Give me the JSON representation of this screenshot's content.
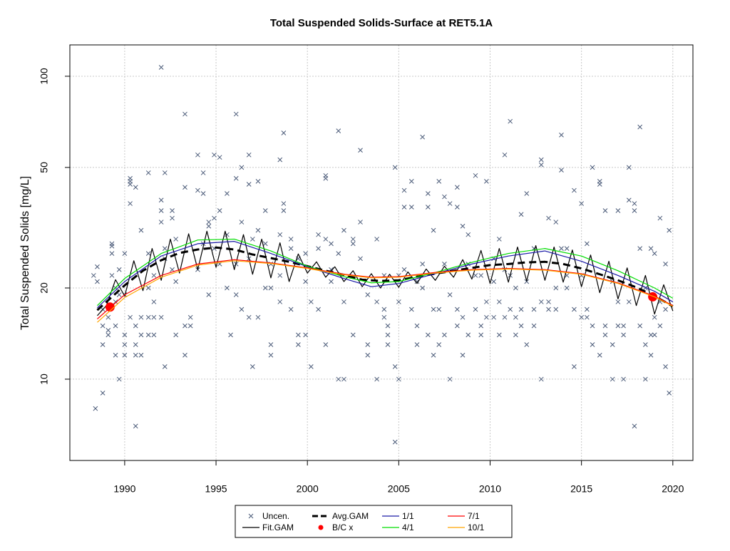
{
  "chart_data": {
    "type": "line",
    "title": "Total Suspended Solids-Surface at RET5.1A",
    "y_label": "Total Suspended Solids [mg/L]",
    "xlim": [
      1987,
      2021.1
    ],
    "ylim": [
      5.39,
      126.9
    ],
    "xticks": [
      1990,
      1995,
      2000,
      2005,
      2010,
      2015,
      2020
    ],
    "yticks": [
      10,
      20,
      50,
      100
    ],
    "ylog": true,
    "grid": true,
    "legend": "bottom",
    "series": [
      {
        "name": "Uncen.",
        "style": "points",
        "color": "#4a5a78",
        "x": [
          1988.3,
          1988.4,
          1988.5,
          1988.5,
          1988.8,
          1988.8,
          1988.8,
          1988.8,
          1989.1,
          1989.1,
          1989.1,
          1989.3,
          1989.3,
          1989.3,
          1989.3,
          1989.5,
          1989.5,
          1989.5,
          1989.5,
          1989.7,
          1989.7,
          1989.7,
          1990.0,
          1990.0,
          1990.0,
          1990.0,
          1990.0,
          1990.3,
          1990.3,
          1990.3,
          1990.3,
          1990.3,
          1990.6,
          1990.6,
          1990.6,
          1990.6,
          1990.6,
          1990.9,
          1990.9,
          1990.9,
          1990.9,
          1991.3,
          1991.3,
          1991.3,
          1991.3,
          1991.3,
          1991.6,
          1991.6,
          1991.6,
          1991.6,
          1992.0,
          1992.0,
          1992.0,
          1992.0,
          1992.0,
          1992.2,
          1992.2,
          1992.2,
          1992.2,
          1992.6,
          1992.6,
          1992.6,
          1992.8,
          1992.8,
          1992.8,
          1993.3,
          1993.3,
          1993.3,
          1993.3,
          1993.6,
          1993.6,
          1994.0,
          1994.0,
          1994.0,
          1994.3,
          1994.3,
          1994.3,
          1994.6,
          1994.6,
          1994.6,
          1994.9,
          1994.9,
          1994.9,
          1995.2,
          1995.2,
          1995.2,
          1995.6,
          1995.6,
          1995.6,
          1995.8,
          1996.1,
          1996.1,
          1996.1,
          1996.1,
          1996.4,
          1996.4,
          1996.4,
          1996.8,
          1996.8,
          1996.8,
          1996.8,
          1997.0,
          1997.0,
          1997.3,
          1997.3,
          1997.3,
          1997.7,
          1997.7,
          1997.7,
          1998.0,
          1998.0,
          1998.0,
          1998.0,
          1998.5,
          1998.5,
          1998.5,
          1998.5,
          1998.7,
          1998.7,
          1998.7,
          1999.1,
          1999.1,
          1999.1,
          1999.5,
          1999.5,
          1999.5,
          1999.9,
          1999.9,
          1999.9,
          2000.2,
          2000.2,
          2000.6,
          2000.6,
          2000.6,
          2001.0,
          2001.0,
          2001.0,
          2001.0,
          2001.3,
          2001.3,
          2001.3,
          2001.7,
          2001.7,
          2001.7,
          2002.0,
          2002.0,
          2002.0,
          2002.5,
          2002.5,
          2002.5,
          2002.9,
          2002.9,
          2002.9,
          2003.3,
          2003.3,
          2003.3,
          2003.8,
          2003.8,
          2003.8,
          2004.2,
          2004.2,
          2004.2,
          2004.4,
          2004.4,
          2004.4,
          2004.8,
          2004.8,
          2004.8,
          2005.0,
          2005.0,
          2005.0,
          2005.3,
          2005.3,
          2005.3,
          2005.7,
          2005.7,
          2005.7,
          2006.0,
          2006.0,
          2006.0,
          2006.3,
          2006.3,
          2006.3,
          2006.6,
          2006.6,
          2006.6,
          2006.9,
          2006.9,
          2006.9,
          2007.2,
          2007.2,
          2007.2,
          2007.5,
          2007.5,
          2007.5,
          2007.8,
          2007.8,
          2007.8,
          2008.2,
          2008.2,
          2008.2,
          2008.2,
          2008.5,
          2008.5,
          2008.5,
          2008.8,
          2008.8,
          2008.8,
          2009.2,
          2009.2,
          2009.2,
          2009.5,
          2009.5,
          2009.5,
          2009.8,
          2009.8,
          2009.8,
          2010.2,
          2010.2,
          2010.2,
          2010.5,
          2010.5,
          2010.5,
          2010.8,
          2010.8,
          2010.8,
          2011.1,
          2011.1,
          2011.1,
          2011.4,
          2011.4,
          2011.4,
          2011.7,
          2011.7,
          2011.7,
          2012.0,
          2012.0,
          2012.0,
          2012.4,
          2012.4,
          2012.4,
          2012.8,
          2012.8,
          2012.8,
          2012.8,
          2013.2,
          2013.2,
          2013.2,
          2013.6,
          2013.6,
          2013.6,
          2013.9,
          2013.9,
          2013.9,
          2014.2,
          2014.2,
          2014.2,
          2014.6,
          2014.6,
          2014.6,
          2015.0,
          2015.0,
          2015.0,
          2015.3,
          2015.3,
          2015.3,
          2015.6,
          2015.6,
          2015.6,
          2016.0,
          2016.0,
          2016.0,
          2016.3,
          2016.3,
          2016.3,
          2016.7,
          2016.7,
          2016.7,
          2017.0,
          2017.0,
          2017.0,
          2017.3,
          2017.3,
          2017.3,
          2017.6,
          2017.6,
          2017.6,
          2017.9,
          2017.9,
          2017.9,
          2018.2,
          2018.2,
          2018.2,
          2018.5,
          2018.5,
          2018.5,
          2018.8,
          2018.8,
          2018.8,
          2019.0,
          2019.0,
          2019.0,
          2019.3,
          2019.3,
          2019.3,
          2019.6,
          2019.6,
          2019.6,
          2019.8,
          2019.8
        ],
        "values": [
          22,
          8,
          23.5,
          21,
          9,
          17,
          15,
          13,
          14,
          14.5,
          16,
          26,
          27.5,
          28,
          22,
          15,
          12,
          20,
          18,
          10,
          23,
          19,
          14,
          13,
          12,
          26,
          19,
          46,
          45,
          44,
          38,
          16,
          7,
          12,
          13,
          15,
          43,
          31,
          12,
          14,
          16,
          48,
          14,
          16,
          20,
          26,
          18,
          16,
          14,
          22,
          107,
          33,
          36,
          39,
          16,
          48,
          25,
          27,
          11,
          36,
          34,
          23,
          29,
          21,
          14,
          75,
          43,
          15,
          12,
          15,
          16,
          55,
          42,
          23,
          48,
          41,
          28,
          33,
          32,
          19,
          55,
          34,
          27,
          54,
          36,
          24,
          41,
          30,
          20,
          14,
          75,
          46,
          24,
          19,
          50,
          33,
          17,
          55,
          44,
          16,
          25,
          11,
          29,
          45,
          31,
          16,
          36,
          28,
          20,
          13,
          24,
          12,
          20,
          53,
          30,
          22,
          18,
          65,
          38,
          36,
          29,
          17,
          27,
          13,
          14,
          25,
          26,
          14,
          21,
          11,
          18,
          17,
          27,
          30,
          46,
          47,
          13,
          29,
          28,
          23,
          21,
          66,
          10,
          26,
          10,
          18,
          31,
          14,
          28,
          29,
          57,
          33,
          25,
          12,
          13,
          19,
          29,
          18,
          10,
          17,
          16,
          22,
          15,
          14,
          13,
          6.2,
          11,
          50,
          22,
          18,
          10,
          42,
          37,
          23,
          45,
          37,
          17,
          13,
          21,
          15,
          63,
          24,
          20,
          41,
          37,
          14,
          31,
          17,
          12,
          17,
          13,
          45,
          24,
          40,
          14,
          38,
          19,
          10,
          37,
          17,
          43,
          15,
          32,
          16,
          12,
          30,
          14,
          24,
          47,
          17,
          22,
          15,
          22,
          14,
          45,
          18,
          16,
          25,
          16,
          21,
          29,
          14,
          18,
          55,
          23,
          16,
          71,
          22,
          17,
          20,
          16,
          14,
          35,
          17,
          15,
          41,
          13,
          21,
          27,
          15,
          17,
          53,
          51,
          10,
          18,
          34,
          17,
          18,
          33,
          20,
          17,
          64,
          49,
          27,
          20,
          27,
          22,
          42,
          11,
          17,
          38,
          16,
          22,
          28,
          17,
          16,
          50,
          15,
          13,
          44,
          45,
          12,
          36,
          15,
          14,
          21,
          10,
          13,
          36,
          18,
          15,
          15,
          14,
          10,
          50,
          39,
          18,
          38,
          36,
          7,
          68,
          27,
          15,
          10,
          20,
          13,
          12,
          14,
          27,
          26,
          14,
          16,
          34,
          18,
          15,
          24,
          11,
          17,
          9,
          31
        ]
      },
      {
        "name": "Fit.GAM",
        "style": "line",
        "color": "#000000",
        "x": [
          1988.5,
          1989,
          1989.5,
          1990,
          1990.5,
          1991,
          1991.5,
          1992,
          1992.5,
          1993,
          1993.5,
          1994,
          1994.5,
          1995,
          1995.5,
          1996,
          1996.5,
          1997,
          1997.5,
          1998,
          1998.5,
          1999,
          1999.5,
          2000,
          2000.5,
          2001,
          2001.5,
          2002,
          2002.5,
          2003,
          2003.5,
          2004,
          2004.5,
          2005,
          2005.5,
          2006,
          2006.5,
          2007,
          2007.5,
          2008,
          2008.5,
          2009,
          2009.5,
          2010,
          2010.5,
          2011,
          2011.5,
          2012,
          2012.5,
          2013,
          2013.5,
          2014,
          2014.5,
          2015,
          2015.5,
          2016,
          2016.5,
          2017,
          2017.5,
          2018,
          2018.5,
          2019,
          2019.5,
          2020
        ],
        "values": [
          16.2,
          17.5,
          21.3,
          18.8,
          24.6,
          19.6,
          27.0,
          21.2,
          29.0,
          22.4,
          30.2,
          23.0,
          30.8,
          23.4,
          30.8,
          23.0,
          30.0,
          22.2,
          29.0,
          21.6,
          28.2,
          21.0,
          25.9,
          22.4,
          24.4,
          21.7,
          23.5,
          21.0,
          22.8,
          20.2,
          22.3,
          20.0,
          22.2,
          20.1,
          22.6,
          20.7,
          23.1,
          21.2,
          23.6,
          21.7,
          24.8,
          21.4,
          26.6,
          20.7,
          27.0,
          20.9,
          27.3,
          21.1,
          27.6,
          21.2,
          27.3,
          20.9,
          26.7,
          20.2,
          25.7,
          19.3,
          24.5,
          18.4,
          23.3,
          17.5,
          22.0,
          16.4,
          20.5,
          16.8
        ]
      },
      {
        "name": "Avg.GAM",
        "style": "dashed",
        "color": "#000000",
        "x": [
          1988.5,
          1990,
          1991,
          1992,
          1993,
          1994,
          1995,
          1996,
          1997,
          1998,
          1999,
          2000,
          2001,
          2002,
          2003,
          2004,
          2005,
          2006,
          2007,
          2008,
          2009,
          2010,
          2011,
          2012,
          2013,
          2014,
          2015,
          2016,
          2017,
          2018,
          2019,
          2020
        ],
        "values": [
          16.9,
          20.4,
          22.8,
          24.7,
          26.1,
          26.8,
          27.2,
          26.8,
          25.8,
          25.1,
          24.4,
          23.6,
          22.8,
          22.1,
          21.3,
          21.1,
          21.2,
          21.8,
          22.3,
          22.8,
          23.3,
          23.8,
          24.0,
          24.3,
          24.4,
          24.0,
          23.2,
          22.2,
          21.2,
          20.1,
          18.8,
          17.4
        ]
      },
      {
        "name": "B/C x",
        "style": "dots",
        "color": "#ff0000",
        "x": [
          1989.2,
          2018.9
        ],
        "values": [
          17.3,
          18.7
        ]
      },
      {
        "name": "1/1",
        "style": "line",
        "color": "#1a1aa6",
        "x": [
          1988.5,
          1990,
          1992,
          1994,
          1996,
          1998,
          2000,
          2002,
          2003.5,
          2005,
          2007,
          2009,
          2011,
          2013,
          2015,
          2017,
          2019,
          2020
        ],
        "values": [
          17.2,
          21,
          25.5,
          28,
          28.5,
          26,
          23.5,
          21.5,
          20.2,
          20.7,
          22.3,
          24,
          25.5,
          26.5,
          24.5,
          22,
          19.5,
          18
        ]
      },
      {
        "name": "4/1",
        "style": "line",
        "color": "#00dd00",
        "x": [
          1988.5,
          1990,
          1992,
          1994,
          1996,
          1998,
          2000,
          2002,
          2003.5,
          2005,
          2007,
          2009,
          2011,
          2013,
          2015,
          2017,
          2019,
          2020
        ],
        "values": [
          17.5,
          21.5,
          26,
          28.8,
          29,
          26.5,
          23.6,
          21.8,
          20.8,
          21,
          22.5,
          24.3,
          26,
          27,
          25.5,
          22.8,
          20,
          18.5
        ]
      },
      {
        "name": "7/1",
        "style": "line",
        "color": "#ff0000",
        "x": [
          1988.5,
          1990,
          1992,
          1994,
          1996,
          1998,
          2000,
          2002,
          2003.5,
          2005,
          2007,
          2009,
          2011,
          2013,
          2015,
          2017,
          2019,
          2020
        ],
        "values": [
          15.8,
          19,
          22,
          24,
          24.8,
          24.2,
          23.3,
          22.2,
          21.7,
          21.8,
          22.5,
          23,
          23.2,
          23,
          22.3,
          20.8,
          18.8,
          17.5
        ]
      },
      {
        "name": "10/1",
        "style": "line",
        "color": "#ffa500",
        "x": [
          1988.5,
          1990,
          1992,
          1994,
          1996,
          1998,
          2000,
          2002,
          2003.5,
          2005,
          2007,
          2009,
          2011,
          2013,
          2015,
          2017,
          2019,
          2020
        ],
        "values": [
          15.4,
          18.6,
          21.7,
          23.8,
          24.6,
          24.1,
          23.2,
          22.1,
          21.6,
          21.7,
          22.4,
          22.9,
          23.1,
          22.9,
          22.2,
          20.7,
          18.7,
          17.4
        ]
      }
    ]
  }
}
